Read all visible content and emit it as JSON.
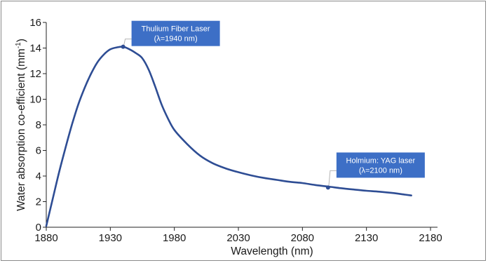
{
  "chart_data": {
    "type": "line",
    "title": "",
    "xlabel": "Wavelength (nm)",
    "ylabel_main": "Water absorption co-efficient (mm",
    "ylabel_sup": "-1",
    "ylabel_close": ")",
    "xlim": [
      1880,
      2180
    ],
    "ylim": [
      0,
      16
    ],
    "x_ticks": [
      1880,
      1930,
      1980,
      2030,
      2080,
      2130,
      2180
    ],
    "y_ticks": [
      0,
      2,
      4,
      6,
      8,
      10,
      12,
      14,
      16
    ],
    "grid": false,
    "legend": "none",
    "series": [
      {
        "color": "#2e4d94",
        "x": [
          1880,
          1885,
          1890,
          1895,
          1900,
          1905,
          1910,
          1915,
          1920,
          1925,
          1930,
          1935,
          1940,
          1945,
          1950,
          1955,
          1960,
          1965,
          1970,
          1975,
          1980,
          1990,
          2000,
          2010,
          2020,
          2030,
          2040,
          2050,
          2060,
          2070,
          2080,
          2090,
          2100,
          2110,
          2120,
          2130,
          2140,
          2150,
          2160,
          2165
        ],
        "y": [
          0.1,
          2.2,
          4.3,
          6.2,
          8.0,
          9.6,
          10.9,
          12.0,
          12.9,
          13.5,
          13.9,
          14.05,
          14.1,
          13.9,
          13.6,
          13.2,
          12.3,
          11.0,
          9.6,
          8.5,
          7.6,
          6.5,
          5.6,
          5.0,
          4.6,
          4.3,
          4.05,
          3.85,
          3.7,
          3.55,
          3.45,
          3.3,
          3.18,
          3.05,
          2.95,
          2.85,
          2.78,
          2.68,
          2.55,
          2.48
        ]
      }
    ],
    "annotations": [
      {
        "line1": "Thulium Fiber Laser",
        "line2": "(λ=1940 nm)",
        "x": 1940,
        "y": 14.1
      },
      {
        "line1": "Holmium: YAG laser",
        "line2": "(λ=2100 nm)",
        "x": 2100,
        "y": 3.1
      }
    ],
    "colors": {
      "line": "#2e4d94",
      "callout_fill": "#3d6fc6",
      "axis": "#222222",
      "leader": "#b5b5b5"
    }
  }
}
